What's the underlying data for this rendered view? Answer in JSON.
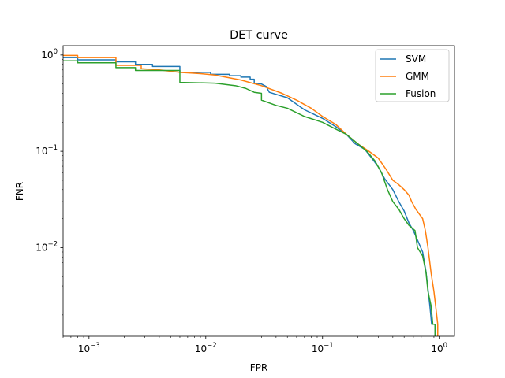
{
  "chart_data": {
    "type": "line",
    "title": "DET curve",
    "xlabel": "FPR",
    "ylabel": "FNR",
    "xscale": "log",
    "yscale": "log",
    "xlim": [
      0.0006,
      1.35
    ],
    "ylim": [
      0.0012,
      1.25
    ],
    "grid": false,
    "legend_position": "top-right",
    "x_ticks": [
      {
        "value": 0.001,
        "base": "10",
        "exp": "−3"
      },
      {
        "value": 0.01,
        "base": "10",
        "exp": "−2"
      },
      {
        "value": 0.1,
        "base": "10",
        "exp": "−1"
      },
      {
        "value": 1,
        "base": "10",
        "exp": "0"
      }
    ],
    "y_ticks": [
      {
        "value": 0.01,
        "base": "10",
        "exp": "−2"
      },
      {
        "value": 0.1,
        "base": "10",
        "exp": "−1"
      },
      {
        "value": 1,
        "base": "10",
        "exp": "0"
      }
    ],
    "series": [
      {
        "name": "SVM",
        "color": "#1f77b4",
        "points": [
          [
            0.0006,
            0.94
          ],
          [
            0.0008,
            0.94
          ],
          [
            0.0008,
            0.89
          ],
          [
            0.0017,
            0.89
          ],
          [
            0.0017,
            0.85
          ],
          [
            0.0025,
            0.85
          ],
          [
            0.0025,
            0.8
          ],
          [
            0.0035,
            0.8
          ],
          [
            0.0035,
            0.76
          ],
          [
            0.006,
            0.76
          ],
          [
            0.006,
            0.66
          ],
          [
            0.011,
            0.66
          ],
          [
            0.011,
            0.63
          ],
          [
            0.016,
            0.63
          ],
          [
            0.016,
            0.61
          ],
          [
            0.02,
            0.61
          ],
          [
            0.02,
            0.59
          ],
          [
            0.024,
            0.59
          ],
          [
            0.024,
            0.56
          ],
          [
            0.026,
            0.56
          ],
          [
            0.026,
            0.51
          ],
          [
            0.03,
            0.5
          ],
          [
            0.033,
            0.47
          ],
          [
            0.035,
            0.41
          ],
          [
            0.05,
            0.36
          ],
          [
            0.07,
            0.27
          ],
          [
            0.1,
            0.22
          ],
          [
            0.13,
            0.18
          ],
          [
            0.16,
            0.15
          ],
          [
            0.19,
            0.12
          ],
          [
            0.23,
            0.105
          ],
          [
            0.27,
            0.082
          ],
          [
            0.3,
            0.069
          ],
          [
            0.34,
            0.052
          ],
          [
            0.4,
            0.04
          ],
          [
            0.45,
            0.03
          ],
          [
            0.5,
            0.024
          ],
          [
            0.55,
            0.018
          ],
          [
            0.6,
            0.015
          ],
          [
            0.65,
            0.012
          ],
          [
            0.72,
            0.009
          ],
          [
            0.77,
            0.0056
          ],
          [
            0.8,
            0.0037
          ],
          [
            0.83,
            0.0025
          ],
          [
            0.86,
            0.0016
          ],
          [
            0.92,
            0.0016
          ],
          [
            0.92,
            0.0012
          ]
        ]
      },
      {
        "name": "GMM",
        "color": "#ff7f0e",
        "points": [
          [
            0.0006,
            0.99
          ],
          [
            0.0008,
            0.99
          ],
          [
            0.0008,
            0.94
          ],
          [
            0.0017,
            0.94
          ],
          [
            0.0017,
            0.78
          ],
          [
            0.0028,
            0.78
          ],
          [
            0.0028,
            0.72
          ],
          [
            0.004,
            0.7
          ],
          [
            0.006,
            0.66
          ],
          [
            0.009,
            0.64
          ],
          [
            0.012,
            0.62
          ],
          [
            0.02,
            0.55
          ],
          [
            0.03,
            0.48
          ],
          [
            0.045,
            0.4
          ],
          [
            0.06,
            0.34
          ],
          [
            0.08,
            0.28
          ],
          [
            0.1,
            0.23
          ],
          [
            0.13,
            0.19
          ],
          [
            0.16,
            0.15
          ],
          [
            0.2,
            0.12
          ],
          [
            0.25,
            0.1
          ],
          [
            0.3,
            0.085
          ],
          [
            0.35,
            0.065
          ],
          [
            0.4,
            0.05
          ],
          [
            0.45,
            0.045
          ],
          [
            0.5,
            0.04
          ],
          [
            0.55,
            0.035
          ],
          [
            0.58,
            0.03
          ],
          [
            0.63,
            0.025
          ],
          [
            0.68,
            0.022
          ],
          [
            0.72,
            0.02
          ],
          [
            0.76,
            0.015
          ],
          [
            0.8,
            0.01
          ],
          [
            0.85,
            0.0055
          ],
          [
            0.9,
            0.0035
          ],
          [
            0.93,
            0.0025
          ],
          [
            0.97,
            0.0016
          ],
          [
            0.97,
            0.0012
          ]
        ]
      },
      {
        "name": "Fusion",
        "color": "#2ca02c",
        "points": [
          [
            0.0006,
            0.87
          ],
          [
            0.0008,
            0.87
          ],
          [
            0.0008,
            0.83
          ],
          [
            0.0017,
            0.83
          ],
          [
            0.0017,
            0.74
          ],
          [
            0.0025,
            0.74
          ],
          [
            0.0025,
            0.69
          ],
          [
            0.006,
            0.69
          ],
          [
            0.006,
            0.52
          ],
          [
            0.012,
            0.51
          ],
          [
            0.018,
            0.48
          ],
          [
            0.022,
            0.45
          ],
          [
            0.026,
            0.41
          ],
          [
            0.03,
            0.4
          ],
          [
            0.03,
            0.34
          ],
          [
            0.04,
            0.3
          ],
          [
            0.05,
            0.28
          ],
          [
            0.07,
            0.23
          ],
          [
            0.1,
            0.2
          ],
          [
            0.13,
            0.17
          ],
          [
            0.16,
            0.15
          ],
          [
            0.2,
            0.12
          ],
          [
            0.24,
            0.1
          ],
          [
            0.28,
            0.08
          ],
          [
            0.32,
            0.06
          ],
          [
            0.36,
            0.04
          ],
          [
            0.4,
            0.03
          ],
          [
            0.45,
            0.025
          ],
          [
            0.5,
            0.02
          ],
          [
            0.55,
            0.017
          ],
          [
            0.62,
            0.015
          ],
          [
            0.65,
            0.01
          ],
          [
            0.72,
            0.0082
          ],
          [
            0.77,
            0.0055
          ],
          [
            0.8,
            0.0035
          ],
          [
            0.85,
            0.0025
          ],
          [
            0.88,
            0.0016
          ],
          [
            0.92,
            0.0016
          ],
          [
            0.92,
            0.0012
          ]
        ]
      }
    ]
  }
}
